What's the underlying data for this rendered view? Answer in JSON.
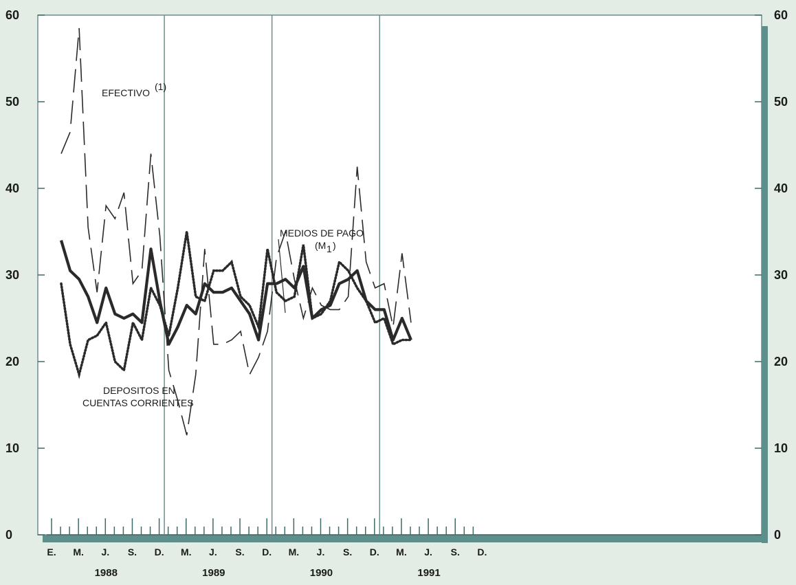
{
  "chart_data": {
    "type": "line",
    "ylim": [
      0,
      60
    ],
    "yticks": [
      "0",
      "10",
      "20",
      "30",
      "40",
      "50",
      "60"
    ],
    "month_labels": [
      "E.",
      "M.",
      "J.",
      "S.",
      "D.",
      "M.",
      "J.",
      "S.",
      "D.",
      "M.",
      "J.",
      "S.",
      "D.",
      "M.",
      "J.",
      "S.",
      "D."
    ],
    "years": [
      "1988",
      "1989",
      "1990",
      "1991"
    ],
    "series": [
      {
        "name": "EFECTIVO",
        "name_suffix": "(1)",
        "style": "dashed",
        "values": [
          44,
          46.5,
          58.5,
          35.5,
          28,
          38,
          36.5,
          39.5,
          29,
          30.5,
          44,
          34.5,
          19,
          15.5,
          11.5,
          18.5,
          33,
          22,
          22,
          22.5,
          23.5,
          18.5,
          20.5,
          23.5,
          32,
          35,
          29.5,
          25,
          28.5,
          26.5,
          26,
          26,
          27.5,
          42.5,
          31.5,
          28.5,
          29,
          24,
          32.5,
          24.5
        ]
      },
      {
        "name": "MEDIOS DE PAGO",
        "name_sub": "(M",
        "name_sub_index": "1",
        "name_sub_close": ")",
        "style": "thick",
        "values": [
          34,
          30.5,
          29.5,
          27.5,
          24.5,
          28.5,
          25.5,
          25,
          25.5,
          24.5,
          33,
          27,
          22,
          24,
          26.5,
          25.5,
          29,
          28,
          28,
          28.5,
          27,
          25.5,
          22.5,
          29,
          29,
          29.5,
          28.5,
          31,
          25,
          26,
          26.5,
          29,
          29.5,
          30.5,
          27,
          26,
          26,
          22.5,
          25,
          22.5
        ]
      },
      {
        "name": "DEPOSITOS EN",
        "name_line2": "CUENTAS CORRIENTES",
        "style": "dotted",
        "values": [
          29,
          22,
          18.5,
          22.5,
          23,
          24.5,
          20,
          19,
          24.5,
          22.5,
          28.5,
          26.5,
          23,
          28.5,
          35,
          27.5,
          27,
          30.5,
          30.5,
          31.5,
          27.5,
          26.5,
          24,
          33,
          28,
          27,
          27.5,
          33.5,
          25,
          25.5,
          27,
          31.5,
          30.5,
          28.5,
          27,
          24.5,
          25,
          22,
          22.5,
          22.5
        ]
      }
    ]
  }
}
